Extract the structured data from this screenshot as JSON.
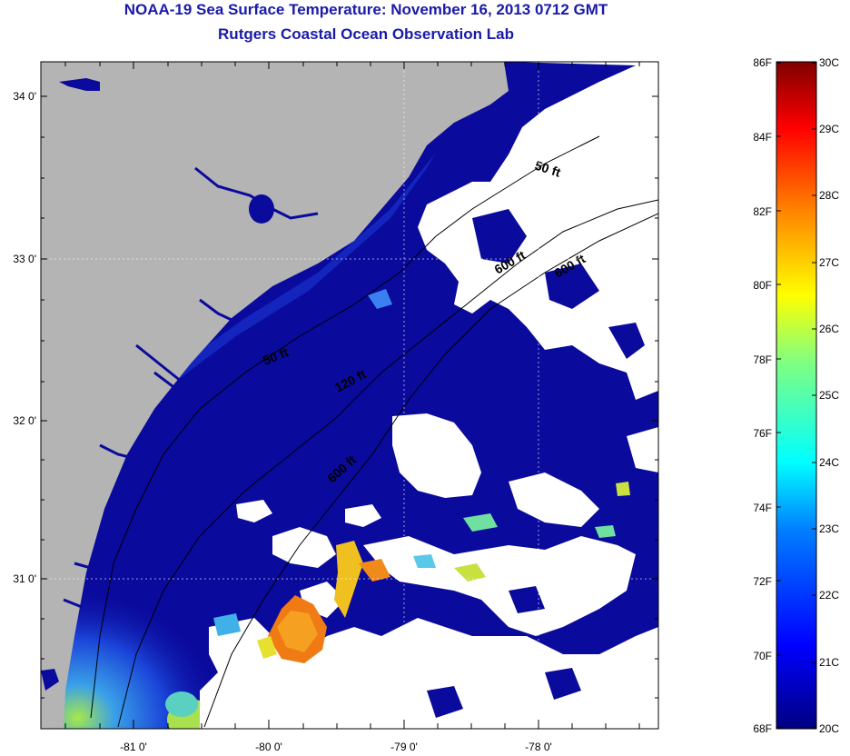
{
  "header": {
    "title": "NOAA-19 Sea Surface Temperature:  November 16, 2013 0712 GMT",
    "subtitle": "Rutgers Coastal Ocean Observation Lab"
  },
  "map": {
    "lat_ticks": [
      "34 0'",
      "33 0'",
      "32 0'",
      "31 0'"
    ],
    "lon_ticks": [
      "-81 0'",
      "-80 0'",
      "-79 0'",
      "-78 0'"
    ],
    "contour_labels": [
      "50 ft",
      "50 ft",
      "120 ft",
      "600 ft",
      "600 ft",
      "600 ft"
    ],
    "colors": {
      "land": "#b4b4b4",
      "water_base": "#0a0a9c",
      "clouds": "#ffffff",
      "warm_patch": "#f07a14",
      "shelf_cool": "#3aa0e8"
    }
  },
  "colorbar": {
    "f_labels": [
      "86F",
      "84F",
      "82F",
      "80F",
      "78F",
      "76F",
      "74F",
      "72F",
      "70F",
      "68F"
    ],
    "c_labels": [
      "30C",
      "29C",
      "28C",
      "27C",
      "26C",
      "25C",
      "24C",
      "23C",
      "22C",
      "21C",
      "20C"
    ],
    "gradient": [
      "#00007f",
      "#0000ff",
      "#0080ff",
      "#00ffff",
      "#80ff80",
      "#ffff00",
      "#ff8000",
      "#ff0000",
      "#7f0000"
    ]
  }
}
